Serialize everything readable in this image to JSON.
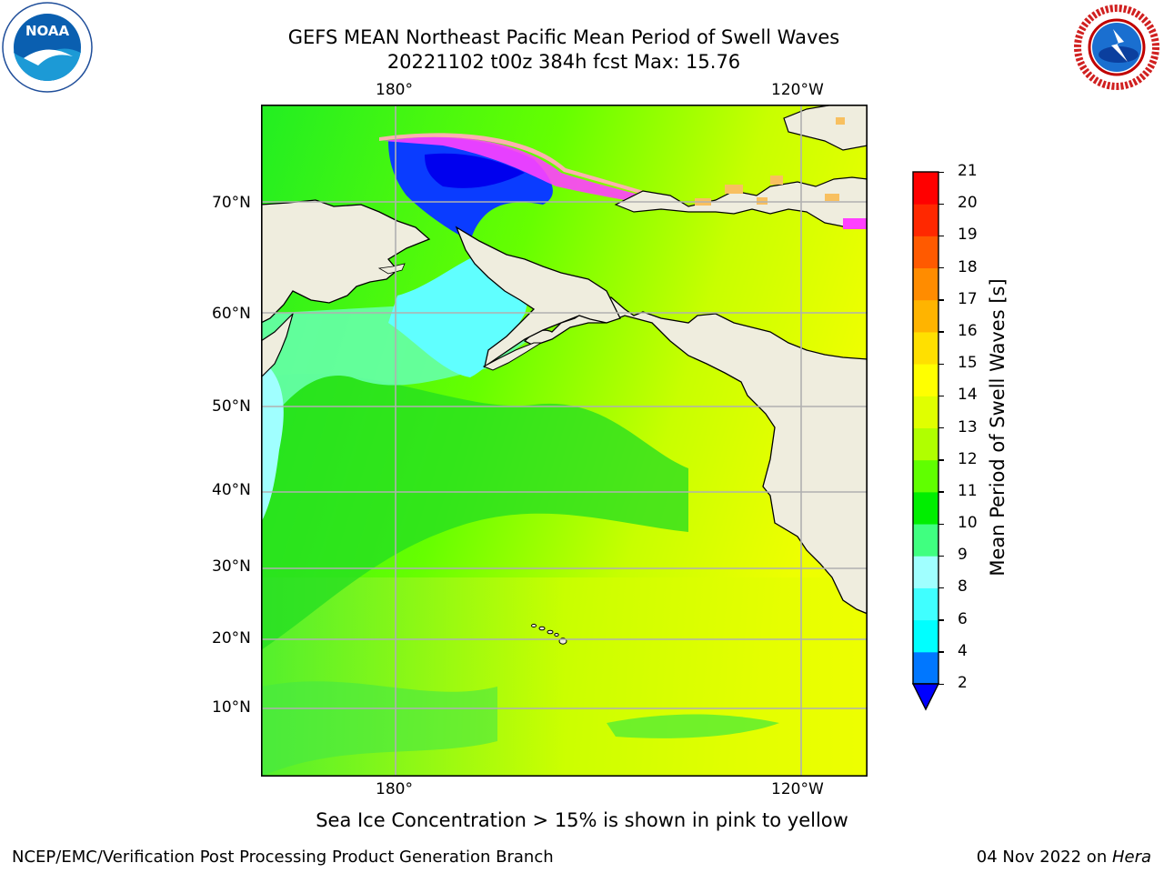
{
  "title": {
    "line1": "GEFS MEAN Northeast Pacific Mean Period of Swell Waves",
    "line2": "20221102 t00z 384h fcst   Max: 15.76"
  },
  "logos": {
    "left": {
      "icon": "noaa-logo-icon",
      "text": "NOAA"
    },
    "right": {
      "icon": "nws-logo-icon",
      "text": "NATIONAL WEATHER SERVICE"
    }
  },
  "map": {
    "lon_labels_top": [
      "180°",
      "120°W"
    ],
    "lon_labels_bottom": [
      "180°",
      "120°W"
    ],
    "lat_labels": [
      "70°N",
      "60°N",
      "50°N",
      "40°N",
      "30°N",
      "20°N",
      "10°N"
    ],
    "land_color": "#efedde",
    "grid_color": "#b0b0b0"
  },
  "colorbar": {
    "label": "Mean Period of Swell Waves [s]",
    "ticks": [
      "2",
      "4",
      "6",
      "8",
      "9",
      "10",
      "11",
      "12",
      "13",
      "14",
      "15",
      "16",
      "17",
      "18",
      "19",
      "20",
      "21"
    ],
    "colors": [
      "#0000ff",
      "#0077ff",
      "#00ffff",
      "#40ffff",
      "#a0ffff",
      "#40ff80",
      "#00ee00",
      "#60ff00",
      "#b0ff00",
      "#e0ff00",
      "#ffff00",
      "#ffe000",
      "#ffb400",
      "#ff8c00",
      "#ff5a00",
      "#ff2800",
      "#ff0000"
    ],
    "extend_color": "#0000ff"
  },
  "notice": "Sea Ice Concentration > 15% is shown in pink to yellow",
  "footer": {
    "left": "NCEP/EMC/Verification Post Processing Product Generation Branch",
    "date": "04 Nov 2022 on ",
    "machine": "Hera"
  }
}
